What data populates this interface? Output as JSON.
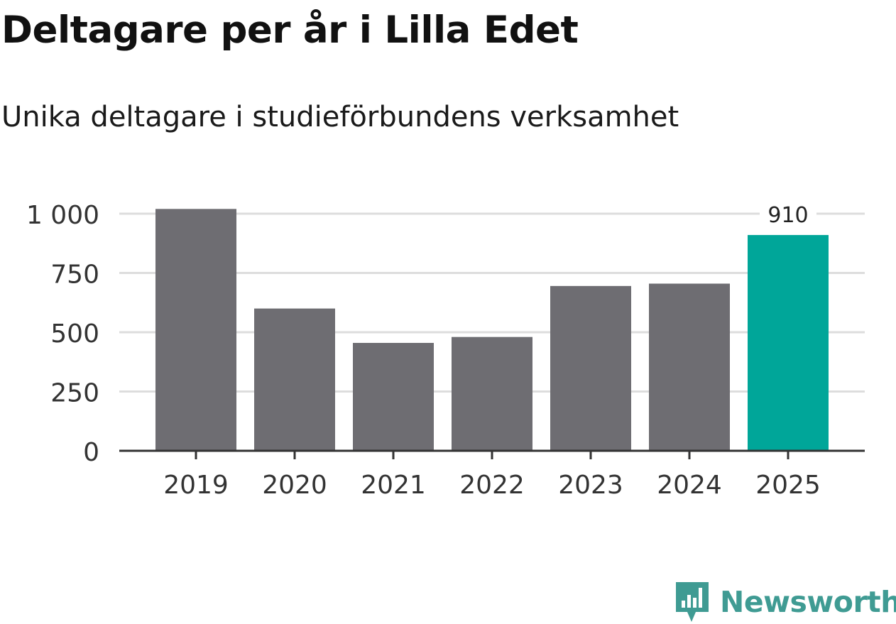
{
  "header": {
    "title": "Deltagare per år i Lilla Edet",
    "subtitle": "Unika deltagare i studieförbundens verksamhet"
  },
  "chart_data": {
    "type": "bar",
    "categories": [
      "2019",
      "2020",
      "2021",
      "2022",
      "2023",
      "2024",
      "2025"
    ],
    "values": [
      1020,
      600,
      455,
      480,
      695,
      705,
      910
    ],
    "ylim": [
      0,
      1000
    ],
    "yticks": [
      0,
      250,
      500,
      750,
      1000
    ],
    "ytick_labels": [
      "0",
      "250",
      "500",
      "750",
      "1 000"
    ],
    "grid": true,
    "highlight_index": 6,
    "data_labels": [
      {
        "index": 6,
        "text": "910"
      }
    ],
    "colors": {
      "bar": "#6e6d72",
      "highlight": "#00a699",
      "grid": "#dddddd",
      "axis": "#333333",
      "tick_text": "#333333"
    }
  },
  "brand": {
    "name": "Newsworthy",
    "icon": "newsworthy-chart-icon",
    "color": "#3f9b93"
  }
}
